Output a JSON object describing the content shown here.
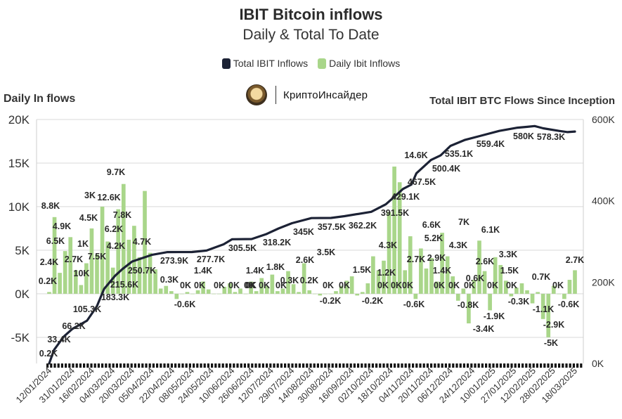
{
  "header": {
    "title": "IBIT Bitcoin inflows",
    "subtitle": "Daily & Total To Date"
  },
  "legend": {
    "total_label": "Total IBIT Inflows",
    "daily_label": "Daily Ibit Inflows"
  },
  "brand": {
    "name": "КриптоИнсайдер",
    "logo_icon": "coin-logo-icon"
  },
  "axis_titles": {
    "left": "Daily In flows",
    "right": "Total IBIT BTC Flows Since Inception"
  },
  "colors": {
    "daily": "#a9d68a",
    "total": "#1c2235",
    "grid": "#d9d9d9"
  },
  "chart_data": {
    "type": "bar",
    "grid": true,
    "legend_position": "top-center",
    "y_left": {
      "lim": [
        -8000,
        20000
      ],
      "ticks": [
        -5000,
        0,
        5000,
        10000,
        15000,
        20000
      ],
      "tick_labels": [
        "-5K",
        "0K",
        "5K",
        "10K",
        "15K",
        "20K"
      ]
    },
    "y_right": {
      "lim": [
        0,
        600000
      ],
      "ticks": [
        0,
        200000,
        400000,
        600000
      ],
      "tick_labels": [
        "0K",
        "200K",
        "400K",
        "600K"
      ]
    },
    "x_tick_labels": [
      "12/01/2024",
      "31/01/2024",
      "16/02/2024",
      "04/03/2024",
      "20/03/2024",
      "05/04/2024",
      "22/04/2024",
      "08/05/2024",
      "24/05/2024",
      "10/06/2024",
      "26/06/2024",
      "12/07/2024",
      "29/07/2024",
      "14/08/2024",
      "30/08/2024",
      "16/09/2024",
      "02/10/2024",
      "18/10/2024",
      "04/11/2024",
      "20/11/2024",
      "06/12/2024",
      "24/12/2024",
      "10/01/2025",
      "27/01/2025",
      "12/02/2025",
      "28/02/2025",
      "18/03/2025"
    ],
    "daily_labels": [
      {
        "date": "12/01/2024",
        "value": 8800,
        "text": "8.8K"
      },
      {
        "date": "12/01/2024",
        "value": 2400,
        "text": "2.4K"
      },
      {
        "date": "12/01/2024",
        "value": 200,
        "text": "0.2K"
      },
      {
        "date": "31/01/2024",
        "value": 6500,
        "text": "6.5K"
      },
      {
        "date": "31/01/2024",
        "value": 4900,
        "text": "4.9K"
      },
      {
        "date": "31/01/2024",
        "value": 2700,
        "text": "2.7K"
      },
      {
        "date": "16/02/2024",
        "value": 10000,
        "text": "10K"
      },
      {
        "date": "16/02/2024",
        "value": 7500,
        "text": "7.5K"
      },
      {
        "date": "16/02/2024",
        "value": 4500,
        "text": "4.5K"
      },
      {
        "date": "16/02/2024",
        "value": 1000,
        "text": "1K"
      },
      {
        "date": "04/03/2024",
        "value": 3000,
        "text": "3K"
      },
      {
        "date": "04/03/2024",
        "value": 12600,
        "text": "12.6K"
      },
      {
        "date": "04/03/2024",
        "value": 9700,
        "text": "9.7K"
      },
      {
        "date": "04/03/2024",
        "value": 7800,
        "text": "7.8K"
      },
      {
        "date": "04/03/2024",
        "value": 6200,
        "text": "6.2K"
      },
      {
        "date": "04/03/2024",
        "value": 4200,
        "text": "4.2K"
      },
      {
        "date": "20/03/2024",
        "value": 4700,
        "text": "4.7K"
      },
      {
        "date": "05/04/2024",
        "value": 300,
        "text": "0.3K"
      },
      {
        "date": "05/04/2024",
        "value": -600,
        "text": "-0.6K"
      },
      {
        "date": "08/05/2024",
        "value": 0,
        "text": "0K"
      },
      {
        "date": "08/05/2024",
        "value": 0,
        "text": "0K"
      },
      {
        "date": "24/05/2024",
        "value": 1400,
        "text": "1.4K"
      },
      {
        "date": "24/05/2024",
        "value": 0,
        "text": "0K"
      },
      {
        "date": "10/06/2024",
        "value": 0,
        "text": "0K"
      },
      {
        "date": "10/06/2024",
        "value": 0,
        "text": "0K"
      },
      {
        "date": "26/06/2024",
        "value": 1400,
        "text": "1.4K"
      },
      {
        "date": "26/06/2024",
        "value": 0,
        "text": "0K"
      },
      {
        "date": "26/06/2024",
        "value": 0,
        "text": "0K"
      },
      {
        "date": "12/07/2024",
        "value": 1800,
        "text": "1.8K"
      },
      {
        "date": "12/07/2024",
        "value": 0,
        "text": "0K"
      },
      {
        "date": "29/07/2024",
        "value": 300,
        "text": "0.3K"
      },
      {
        "date": "29/07/2024",
        "value": 2600,
        "text": "2.6K"
      },
      {
        "date": "14/08/2024",
        "value": 200,
        "text": "0.2K"
      },
      {
        "date": "14/08/2024",
        "value": 3500,
        "text": "3.5K"
      },
      {
        "date": "14/08/2024",
        "value": 0,
        "text": "0K"
      },
      {
        "date": "30/08/2024",
        "value": -200,
        "text": "-0.2K"
      },
      {
        "date": "30/08/2024",
        "value": 0,
        "text": "0K"
      },
      {
        "date": "16/09/2024",
        "value": 1500,
        "text": "1.5K"
      },
      {
        "date": "16/09/2024",
        "value": -200,
        "text": "-0.2K"
      },
      {
        "date": "02/10/2024",
        "value": 4300,
        "text": "4.3K"
      },
      {
        "date": "02/10/2024",
        "value": 1200,
        "text": "1.2K"
      },
      {
        "date": "02/10/2024",
        "value": 0,
        "text": "0K"
      },
      {
        "date": "02/10/2024",
        "value": 0,
        "text": "0K"
      },
      {
        "date": "18/10/2024",
        "value": 2700,
        "text": "2.7K"
      },
      {
        "date": "18/10/2024",
        "value": 14600,
        "text": "14.6K"
      },
      {
        "date": "18/10/2024",
        "value": -600,
        "text": "-0.6K"
      },
      {
        "date": "04/11/2024",
        "value": 0,
        "text": "0K"
      },
      {
        "date": "04/11/2024",
        "value": 6600,
        "text": "6.6K"
      },
      {
        "date": "04/11/2024",
        "value": 5200,
        "text": "5.2K"
      },
      {
        "date": "04/11/2024",
        "value": 2900,
        "text": "2.9K"
      },
      {
        "date": "04/11/2024",
        "value": 1400,
        "text": "1.4K"
      },
      {
        "date": "04/11/2024",
        "value": 0,
        "text": "0K"
      },
      {
        "date": "20/11/2024",
        "value": 0,
        "text": "0K"
      },
      {
        "date": "20/11/2024",
        "value": 7000,
        "text": "7K"
      },
      {
        "date": "20/11/2024",
        "value": 4300,
        "text": "4.3K"
      },
      {
        "date": "20/11/2024",
        "value": 0,
        "text": "0K"
      },
      {
        "date": "06/12/2024",
        "value": -800,
        "text": "-0.8K"
      },
      {
        "date": "06/12/2024",
        "value": 600,
        "text": "0.6K"
      },
      {
        "date": "06/12/2024",
        "value": -3400,
        "text": "-3.4K"
      },
      {
        "date": "24/12/2024",
        "value": 6100,
        "text": "6.1K"
      },
      {
        "date": "24/12/2024",
        "value": 2600,
        "text": "2.6K"
      },
      {
        "date": "24/12/2024",
        "value": 0,
        "text": "0K"
      },
      {
        "date": "24/12/2024",
        "value": -1900,
        "text": "-1.9K"
      },
      {
        "date": "10/01/2025",
        "value": 3300,
        "text": "3.3K"
      },
      {
        "date": "10/01/2025",
        "value": 1500,
        "text": "1.5K"
      },
      {
        "date": "10/01/2025",
        "value": 0,
        "text": "0K"
      },
      {
        "date": "10/01/2025",
        "value": -300,
        "text": "-0.3K"
      },
      {
        "date": "27/01/2025",
        "value": 700,
        "text": "0.7K"
      },
      {
        "date": "27/01/2025",
        "value": -1100,
        "text": "-1.1K"
      },
      {
        "date": "12/02/2025",
        "value": -2900,
        "text": "-2.9K"
      },
      {
        "date": "12/02/2025",
        "value": -5000,
        "text": "-5K"
      },
      {
        "date": "28/02/2025",
        "value": 0,
        "text": "0K"
      },
      {
        "date": "28/02/2025",
        "value": -600,
        "text": "-0.6K"
      },
      {
        "date": "18/03/2025",
        "value": 2700,
        "text": "2.7K"
      }
    ],
    "total_labels": [
      {
        "date": "12/01/2024",
        "value": 200,
        "text": "0.2K"
      },
      {
        "date": "16/01/2024",
        "value": 33400,
        "text": "33.4K"
      },
      {
        "date": "24/01/2024",
        "value": 66200,
        "text": "66.2K"
      },
      {
        "date": "12/02/2024",
        "value": 105300,
        "text": "105.3K"
      },
      {
        "date": "26/02/2024",
        "value": 183300,
        "text": "183.3K"
      },
      {
        "date": "06/03/2024",
        "value": 215600,
        "text": "215.6K"
      },
      {
        "date": "20/03/2024",
        "value": 250700,
        "text": "250.7K"
      },
      {
        "date": "18/04/2024",
        "value": 273900,
        "text": "273.9K"
      },
      {
        "date": "20/05/2024",
        "value": 277700,
        "text": "277.7K"
      },
      {
        "date": "10/06/2024",
        "value": 305500,
        "text": "305.5K"
      },
      {
        "date": "08/07/2024",
        "value": 318200,
        "text": "318.2K"
      },
      {
        "date": "29/07/2024",
        "value": 345000,
        "text": "345K"
      },
      {
        "date": "14/08/2024",
        "value": 357500,
        "text": "357.5K"
      },
      {
        "date": "10/09/2024",
        "value": 362200,
        "text": "362.2K"
      },
      {
        "date": "14/10/2024",
        "value": 391500,
        "text": "391.5K"
      },
      {
        "date": "28/10/2024",
        "value": 429100,
        "text": "429.1K"
      },
      {
        "date": "08/11/2024",
        "value": 467500,
        "text": "467.5K"
      },
      {
        "date": "20/11/2024",
        "value": 500400,
        "text": "500.4K"
      },
      {
        "date": "06/12/2024",
        "value": 535100,
        "text": "535.1K"
      },
      {
        "date": "30/12/2024",
        "value": 559400,
        "text": "559.4K"
      },
      {
        "date": "30/01/2025",
        "value": 580000,
        "text": "580K"
      },
      {
        "date": "20/02/2025",
        "value": 578300,
        "text": "578.3K"
      }
    ],
    "series": [
      {
        "name": "Total IBIT Inflows",
        "axis": "right",
        "points": [
          [
            "12/01/2024",
            200
          ],
          [
            "16/01/2024",
            33400
          ],
          [
            "24/01/2024",
            66200
          ],
          [
            "31/01/2024",
            85000
          ],
          [
            "12/02/2024",
            105300
          ],
          [
            "20/02/2024",
            140000
          ],
          [
            "26/02/2024",
            183300
          ],
          [
            "06/03/2024",
            215600
          ],
          [
            "12/03/2024",
            232000
          ],
          [
            "20/03/2024",
            250700
          ],
          [
            "05/04/2024",
            267000
          ],
          [
            "18/04/2024",
            273900
          ],
          [
            "08/05/2024",
            274000
          ],
          [
            "20/05/2024",
            277700
          ],
          [
            "03/06/2024",
            293000
          ],
          [
            "10/06/2024",
            305500
          ],
          [
            "26/06/2024",
            306000
          ],
          [
            "08/07/2024",
            318200
          ],
          [
            "18/07/2024",
            332000
          ],
          [
            "29/07/2024",
            345000
          ],
          [
            "14/08/2024",
            357500
          ],
          [
            "30/08/2024",
            358000
          ],
          [
            "10/09/2024",
            362200
          ],
          [
            "02/10/2024",
            373000
          ],
          [
            "14/10/2024",
            391500
          ],
          [
            "21/10/2024",
            410000
          ],
          [
            "28/10/2024",
            429100
          ],
          [
            "04/11/2024",
            440000
          ],
          [
            "08/11/2024",
            467500
          ],
          [
            "20/11/2024",
            500400
          ],
          [
            "28/11/2024",
            512000
          ],
          [
            "06/12/2024",
            535100
          ],
          [
            "18/12/2024",
            550000
          ],
          [
            "30/12/2024",
            559400
          ],
          [
            "15/01/2025",
            572000
          ],
          [
            "30/01/2025",
            580000
          ],
          [
            "07/02/2025",
            582000
          ],
          [
            "13/02/2025",
            584000
          ],
          [
            "20/02/2025",
            578300
          ],
          [
            "05/03/2025",
            572000
          ],
          [
            "12/03/2025",
            569000
          ],
          [
            "18/03/2025",
            570500
          ]
        ]
      },
      {
        "name": "Daily Ibit Inflows",
        "axis": "left",
        "values": [
          200,
          8800,
          2400,
          4900,
          6500,
          2700,
          1000,
          3500,
          7500,
          4500,
          10000,
          6000,
          3000,
          9700,
          12600,
          6200,
          7800,
          4200,
          11800,
          4700,
          2800,
          600,
          900,
          300,
          -600,
          0,
          200,
          0,
          400,
          1400,
          500,
          0,
          0,
          800,
          1200,
          200,
          600,
          0,
          1400,
          300,
          1800,
          900,
          2200,
          300,
          600,
          2600,
          1100,
          200,
          3500,
          400,
          0,
          -200,
          0,
          0,
          300,
          900,
          1500,
          2000,
          -200,
          200,
          1200,
          4300,
          2700,
          3800,
          9400,
          14600,
          12800,
          2700,
          6600,
          -600,
          5200,
          2900,
          4100,
          1400,
          7000,
          4300,
          2000,
          -800,
          600,
          -3400,
          1600,
          6100,
          2600,
          -1900,
          4200,
          3300,
          1500,
          -300,
          700,
          1200,
          400,
          -1100,
          200,
          -2900,
          -5000,
          900,
          0,
          -600,
          1600,
          2700
        ]
      }
    ]
  }
}
